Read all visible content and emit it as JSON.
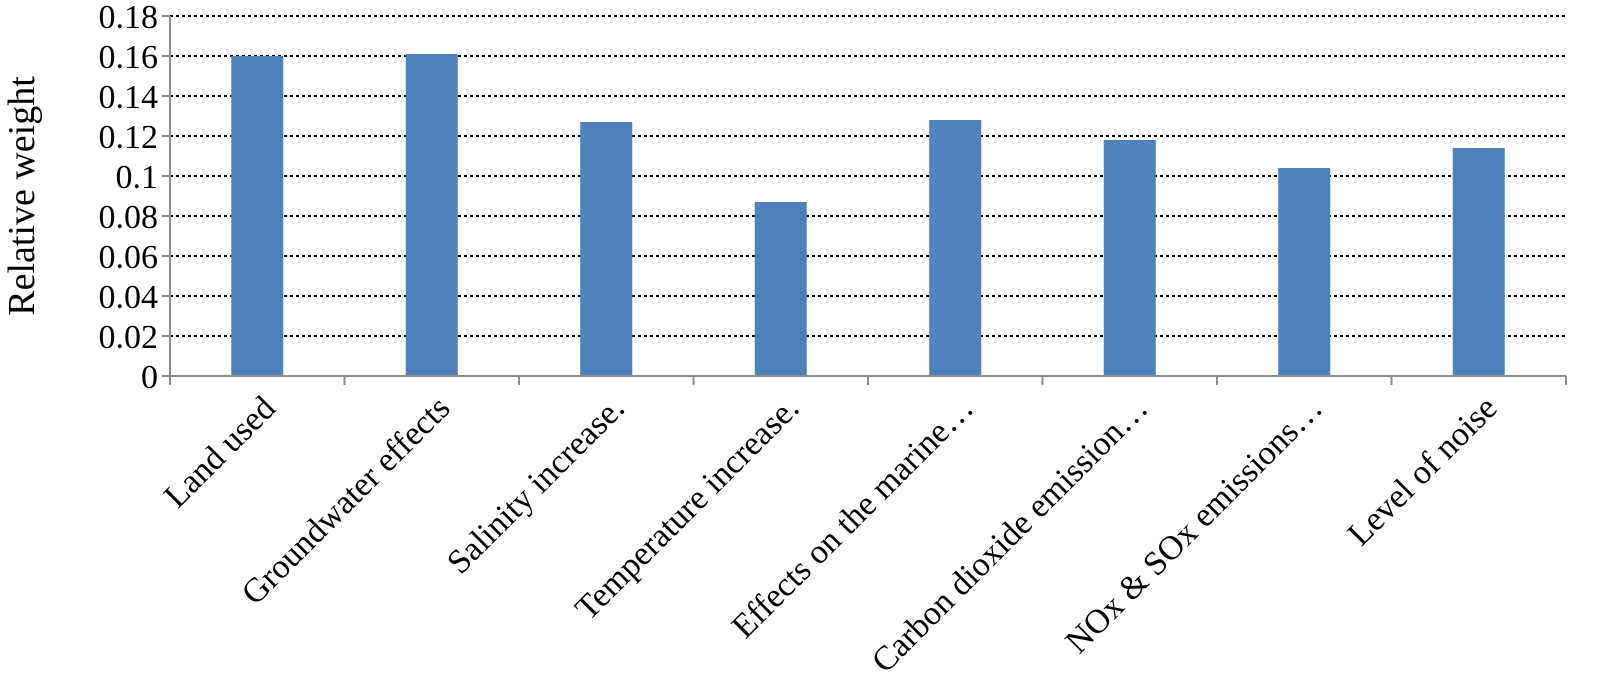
{
  "chart_data": {
    "type": "bar",
    "title": "",
    "xlabel": "",
    "ylabel": "Relative weight",
    "categories": [
      "Land used",
      "Groundwater effects",
      "Salinity increase.",
      "Temperature increase.",
      "Effects on the marine…",
      "Carbon dioxide emission…",
      "NOx & SOx emissions…",
      "Level of noise"
    ],
    "values": [
      0.16,
      0.161,
      0.127,
      0.087,
      0.128,
      0.118,
      0.104,
      0.114
    ],
    "ylim": [
      0,
      0.18
    ],
    "yticks": [
      "0",
      "0.02",
      "0.04",
      "0.06",
      "0.08",
      "0.1",
      "0.12",
      "0.14",
      "0.16",
      "0.18"
    ],
    "grid": true,
    "legend": "none",
    "bar_color": "#4f81bd"
  }
}
